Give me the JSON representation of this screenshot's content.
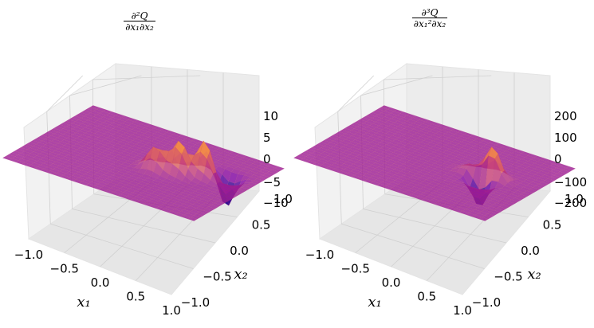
{
  "chart_data": [
    {
      "type": "surface",
      "title_num": "∂²Q",
      "title_den": "∂x₁∂x₂",
      "xlabel": "x₁",
      "ylabel": "x₂",
      "x_ticks": [
        "−1.0",
        "−0.5",
        "0.0",
        "0.5",
        "1.0"
      ],
      "y_ticks": [
        "−1.0",
        "−0.5",
        "0.0",
        "0.5",
        "1.0"
      ],
      "z_ticks": [
        "10",
        "5",
        "0",
        "−5",
        "−10"
      ],
      "xlim": [
        -1.0,
        1.0
      ],
      "ylim": [
        -1.0,
        1.0
      ],
      "zlim": [
        -13,
        13
      ],
      "colormap": "plasma",
      "colors": {
        "low": "#6a00a8",
        "mid": "#e16462",
        "high": "#fcce25"
      },
      "surface_peaks": [
        {
          "x": 0.35,
          "y": 0.05,
          "z": 11
        },
        {
          "x": 0.55,
          "y": 0.2,
          "z": 12
        },
        {
          "x": 0.15,
          "y": -0.05,
          "z": 8
        },
        {
          "x": 0.7,
          "y": 0.35,
          "z": -11
        }
      ]
    },
    {
      "type": "surface",
      "title_num": "∂³Q",
      "title_den": "∂x₁²∂x₂",
      "xlabel": "x₁",
      "ylabel": "x₂",
      "x_ticks": [
        "−1.0",
        "−0.5",
        "0.0",
        "0.5",
        "1.0"
      ],
      "y_ticks": [
        "−1.0",
        "−0.5",
        "0.0",
        "0.5",
        "1.0"
      ],
      "z_ticks": [
        "200",
        "100",
        "0",
        "−100",
        "−200"
      ],
      "xlim": [
        -1.0,
        1.0
      ],
      "ylim": [
        -1.0,
        1.0
      ],
      "zlim": [
        -250,
        250
      ],
      "colormap": "plasma",
      "colors": {
        "low": "#0d0887",
        "mid": "#e16462",
        "high": "#fcce25"
      },
      "surface_peaks": [
        {
          "x": 0.55,
          "y": 0.1,
          "z": 230
        },
        {
          "x": 0.5,
          "y": -0.05,
          "z": -200
        },
        {
          "x": 0.35,
          "y": 0.05,
          "z": 60
        }
      ]
    }
  ]
}
